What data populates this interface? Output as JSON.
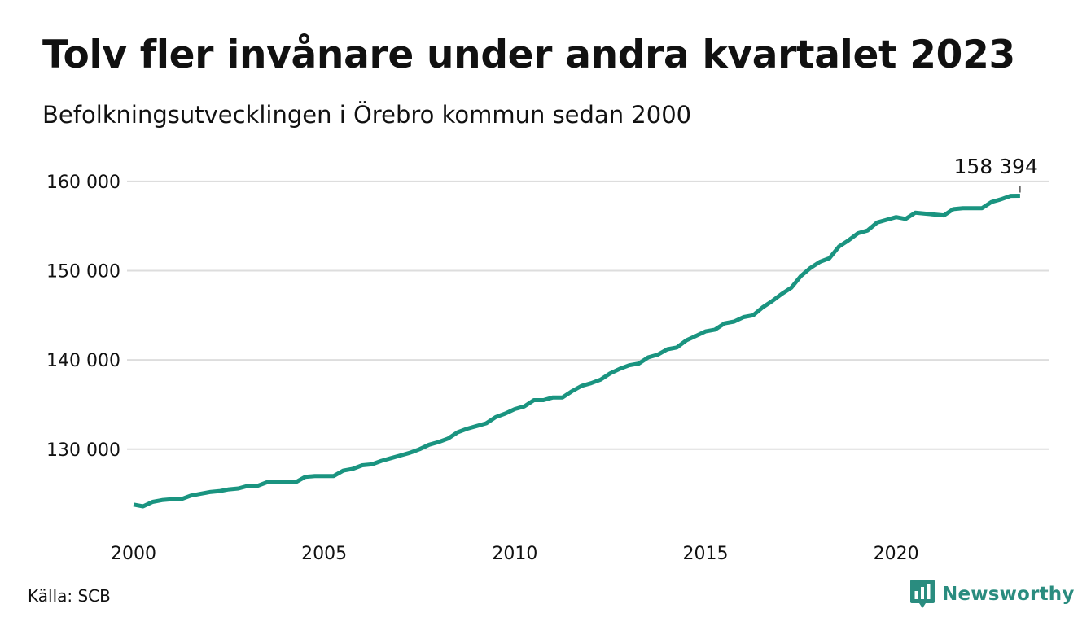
{
  "title": "Tolv fler invånare under andra kvartalet 2023",
  "subtitle": "Befolkningsutvecklingen i Örebro kommun sedan 2000",
  "source": "Källa: SCB",
  "brand": {
    "name": "Newsworthy",
    "icon": "newsworthy-logo-icon",
    "color": "#2a8c7f"
  },
  "chart_data": {
    "type": "line",
    "x_axis": {
      "min": 2000,
      "max": 2024,
      "ticks": [
        2000,
        2005,
        2010,
        2015,
        2020
      ]
    },
    "y_axis": {
      "min": 121500,
      "max": 163000,
      "ticks": [
        130000,
        140000,
        150000,
        160000
      ],
      "tick_labels": [
        "130 000",
        "140 000",
        "150 000",
        "160 000"
      ]
    },
    "grid": "horizontal",
    "line_color": "#1a9480",
    "end_label": "158 394",
    "series": [
      {
        "x": [
          2000.0,
          2000.25,
          2000.5,
          2000.75,
          2001.0,
          2001.25,
          2001.5,
          2001.75,
          2002.0,
          2002.25,
          2002.5,
          2002.75,
          2003.0,
          2003.25,
          2003.5,
          2003.75,
          2004.0,
          2004.25,
          2004.5,
          2004.75,
          2005.0,
          2005.25,
          2005.5,
          2005.75,
          2006.0,
          2006.25,
          2006.5,
          2006.75,
          2007.0,
          2007.25,
          2007.5,
          2007.75,
          2008.0,
          2008.25,
          2008.5,
          2008.75,
          2009.0,
          2009.25,
          2009.5,
          2009.75,
          2010.0,
          2010.25,
          2010.5,
          2010.75,
          2011.0,
          2011.25,
          2011.5,
          2011.75,
          2012.0,
          2012.25,
          2012.5,
          2012.75,
          2013.0,
          2013.25,
          2013.5,
          2013.75,
          2014.0,
          2014.25,
          2014.5,
          2014.75,
          2015.0,
          2015.25,
          2015.5,
          2015.75,
          2016.0,
          2016.25,
          2016.5,
          2016.75,
          2017.0,
          2017.25,
          2017.5,
          2017.75,
          2018.0,
          2018.25,
          2018.5,
          2018.75,
          2019.0,
          2019.25,
          2019.5,
          2019.75,
          2020.0,
          2020.25,
          2020.5,
          2020.75,
          2021.0,
          2021.25,
          2021.5,
          2021.75,
          2022.0,
          2022.25,
          2022.5,
          2022.75,
          2023.0,
          2023.25
        ],
        "y": [
          123800,
          123600,
          124100,
          124300,
          124400,
          124400,
          124800,
          125000,
          125200,
          125300,
          125500,
          125600,
          125900,
          125900,
          126300,
          126300,
          126300,
          126300,
          126900,
          127000,
          127000,
          127000,
          127600,
          127800,
          128200,
          128300,
          128700,
          129000,
          129300,
          129600,
          130000,
          130500,
          130800,
          131200,
          131900,
          132300,
          132600,
          132900,
          133600,
          134000,
          134500,
          134800,
          135500,
          135500,
          135800,
          135800,
          136500,
          137100,
          137400,
          137800,
          138500,
          139000,
          139400,
          139600,
          140300,
          140600,
          141200,
          141400,
          142200,
          142700,
          143200,
          143400,
          144100,
          144300,
          144800,
          145000,
          145900,
          146600,
          147400,
          148100,
          149400,
          150300,
          151000,
          151400,
          152700,
          153400,
          154200,
          154500,
          155400,
          155700,
          156000,
          155800,
          156500,
          156400,
          156300,
          156200,
          156900,
          157000,
          157000,
          157000,
          157700,
          158000,
          158382,
          158394
        ]
      }
    ]
  }
}
